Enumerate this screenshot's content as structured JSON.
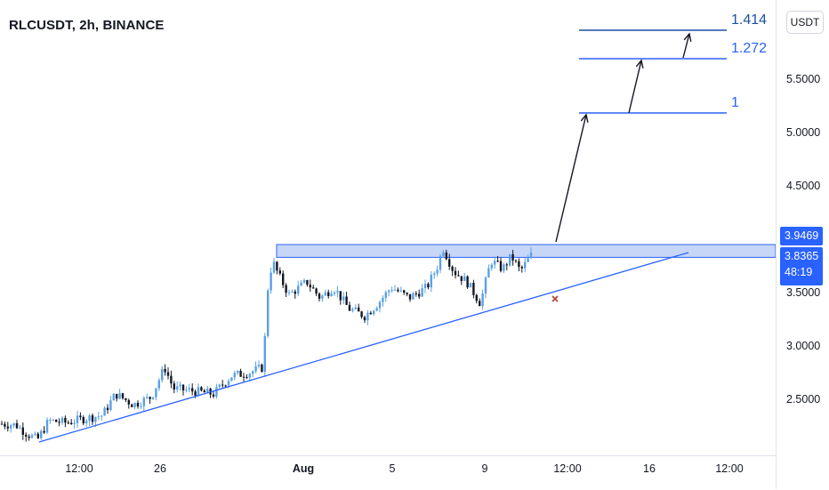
{
  "header": {
    "title": "RLCUSDT, 2h, BINANCE"
  },
  "price_axis": {
    "currency": "USDT",
    "ticks": [
      "5.5000",
      "5.0000",
      "4.5000",
      "3.5000",
      "3.0000",
      "2.5000"
    ]
  },
  "time_axis": {
    "ticks": [
      {
        "label": "12:00",
        "bold": false
      },
      {
        "label": "26",
        "bold": false
      },
      {
        "label": "Aug",
        "bold": true
      },
      {
        "label": "5",
        "bold": false
      },
      {
        "label": "9",
        "bold": false
      },
      {
        "label": "12:00",
        "bold": false
      },
      {
        "label": "16",
        "bold": false
      },
      {
        "label": "12:00",
        "bold": false
      }
    ]
  },
  "labels": {
    "resistance_price": "3.9469",
    "last_price": "3.8365",
    "countdown": "48:19"
  },
  "fib_levels": {
    "level_1": "1",
    "level_1272": "1.272",
    "level_1414": "1.414"
  },
  "colors": {
    "accent": "#2962ff",
    "trendline": "#2962ff",
    "resistance_zone": "#c6d6f7",
    "candle_up": "#5aa0e6",
    "candle_down": "#131722",
    "marker": "#b5493b"
  },
  "chart_data": {
    "type": "candlestick",
    "symbol": "RLCUSDT",
    "interval": "2h",
    "exchange": "BINANCE",
    "y_range": [
      2.0,
      5.9
    ],
    "resistance_zone": [
      3.83,
      3.95
    ],
    "last_price": 3.8365,
    "fib_targets": {
      "1": 5.17,
      "1.272": 5.68,
      "1.414": 5.95
    },
    "ascending_support": {
      "from": 2.07,
      "to": 3.87
    }
  }
}
